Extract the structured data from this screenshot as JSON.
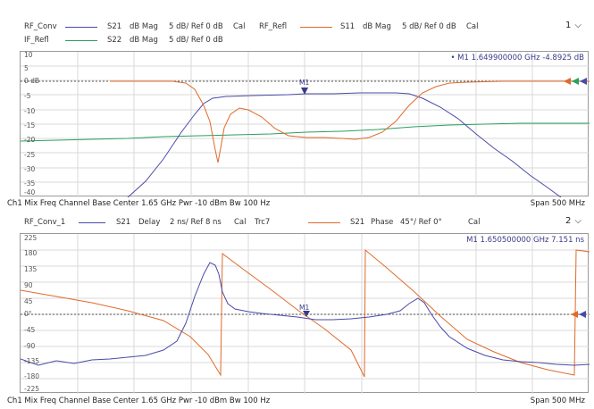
{
  "window1": {
    "legend_row1": {
      "trace_a_name": "RF_Conv",
      "trace_a_label": "S21",
      "trace_a_format": "dB Mag",
      "trace_a_scale": "5 dB/ Ref 0 dB",
      "trace_a_cal": "Cal",
      "trace_b_name": "RF_Refl",
      "trace_b_label": "S11",
      "trace_b_format": "dB Mag",
      "trace_b_scale": "5 dB/ Ref 0 dB",
      "trace_b_cal": "Cal"
    },
    "legend_row2": {
      "trace_c_name": "IF_Refl",
      "trace_c_label": "S22",
      "trace_c_format": "dB Mag",
      "trace_c_scale": "5 dB/ Ref 0 dB"
    },
    "window_number": "1",
    "marker_readout": "• M1  1.649900000  GHz  -4.8925  dB",
    "marker_label": "M1",
    "y_ticks": [
      "10",
      "5",
      "0 dB",
      "-5",
      "-10",
      "-15",
      "-20",
      "-25",
      "-30",
      "-35",
      "-40"
    ],
    "footer_left": "Ch1  Mix Freq Channel Base   Center   1.65 GHz   Pwr   -10 dBm   Bw   100 Hz",
    "footer_right": "Span    500 MHz"
  },
  "window2": {
    "legend_row1": {
      "trace_a_name": "RF_Conv_1",
      "trace_a_label": "S21",
      "trace_a_format": "Delay",
      "trace_a_scale": "2 ns/ Ref 8 ns",
      "trace_a_cal": "Cal",
      "trace_a_extra": "Trc7",
      "trace_b_label": "S21",
      "trace_b_format": "Phase",
      "trace_b_scale": "45°/ Ref 0°",
      "trace_b_cal": "Cal"
    },
    "window_number": "2",
    "marker_readout": "M1  1.650500000  GHz  7.151  ns",
    "marker_label": "M1",
    "y_ticks": [
      "225",
      "180",
      "135",
      "90",
      "45",
      "0°",
      "-45",
      "-90",
      "-135",
      "-180",
      "-225"
    ],
    "footer_left": "Ch1  Mix Freq Channel Base   Center   1.65 GHz   Pwr   -10 dBm   Bw   100 Hz",
    "footer_right": "Span    500 MHz"
  },
  "colors": {
    "trace_blue": "#4a4aa8",
    "trace_orange": "#e06a2a",
    "trace_green": "#2aa060",
    "grid": "#d8d8d8"
  }
}
